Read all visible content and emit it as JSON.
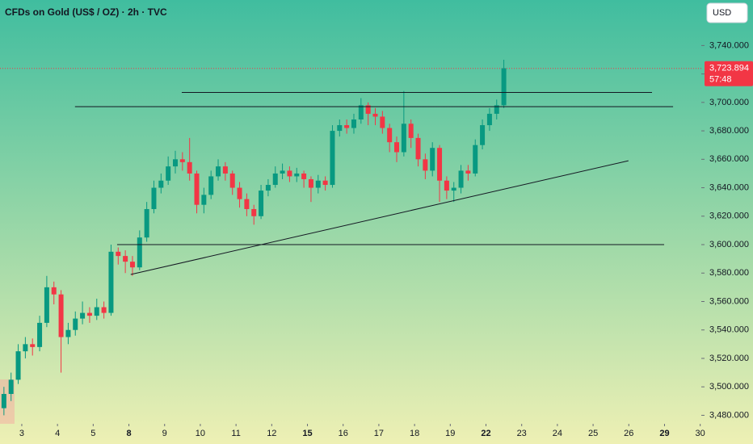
{
  "chart_data": {
    "type": "candlestick",
    "title": "CFDs on Gold (US$ / OZ) · 2h · TVC",
    "currency_button": "USD",
    "up_color": "#089981",
    "down_color": "#f23645",
    "line_color": "#131722",
    "xlim": [
      -0.61,
      19.03
    ],
    "ylim": [
      3474,
      3772
    ],
    "xticks": [
      {
        "value": 0,
        "label": "3"
      },
      {
        "value": 1,
        "label": "4"
      },
      {
        "value": 2,
        "label": "5"
      },
      {
        "value": 3,
        "label": "8"
      },
      {
        "value": 4,
        "label": "9"
      },
      {
        "value": 5,
        "label": "10"
      },
      {
        "value": 6,
        "label": "11"
      },
      {
        "value": 7,
        "label": "12"
      },
      {
        "value": 8,
        "label": "15"
      },
      {
        "value": 9,
        "label": "16"
      },
      {
        "value": 10,
        "label": "17"
      },
      {
        "value": 11,
        "label": "18"
      },
      {
        "value": 12,
        "label": "19"
      },
      {
        "value": 13,
        "label": "22"
      },
      {
        "value": 14,
        "label": "23"
      },
      {
        "value": 15,
        "label": "24"
      },
      {
        "value": 16,
        "label": "25"
      },
      {
        "value": 17,
        "label": "26"
      },
      {
        "value": 18,
        "label": "29"
      },
      {
        "value": 19,
        "label": "30"
      }
    ],
    "yticks": [
      {
        "value": 3480,
        "label": "3,480.000"
      },
      {
        "value": 3500,
        "label": "3,500.000"
      },
      {
        "value": 3520,
        "label": "3,520.000"
      },
      {
        "value": 3540,
        "label": "3,540.000"
      },
      {
        "value": 3560,
        "label": "3,560.000"
      },
      {
        "value": 3580,
        "label": "3,580.000"
      },
      {
        "value": 3600,
        "label": "3,600.000"
      },
      {
        "value": 3620,
        "label": "3,620.000"
      },
      {
        "value": 3640,
        "label": "3,640.000"
      },
      {
        "value": 3660,
        "label": "3,660.000"
      },
      {
        "value": 3680,
        "label": "3,680.000"
      },
      {
        "value": 3700,
        "label": "3,700.000"
      },
      {
        "value": 3720,
        "label": "3,720.000"
      },
      {
        "value": 3740,
        "label": "3,740.000"
      }
    ],
    "x": [
      -0.5,
      -0.3,
      -0.1,
      0.1,
      0.3,
      0.5,
      0.7,
      0.9,
      1.1,
      1.3,
      1.5,
      1.7,
      1.9,
      2.1,
      2.3,
      2.5,
      2.7,
      2.9,
      3.1,
      3.3,
      3.5,
      3.7,
      3.9,
      4.1,
      4.3,
      4.5,
      4.7,
      4.9,
      5.1,
      5.3,
      5.5,
      5.7,
      5.9,
      6.1,
      6.3,
      6.5,
      6.7,
      6.9,
      7.1,
      7.3,
      7.5,
      7.7,
      7.9,
      8.1,
      8.3,
      8.5,
      8.7,
      8.9,
      9.1,
      9.3,
      9.5,
      9.7,
      9.9,
      10.1,
      10.3,
      10.5,
      10.7,
      10.9,
      11.1,
      11.3,
      11.5,
      11.7,
      11.9,
      12.1,
      12.3,
      12.5,
      12.7,
      12.9,
      13.1,
      13.3,
      13.5
    ],
    "open": [
      3485,
      3495,
      3505,
      3525,
      3530,
      3528,
      3545,
      3570,
      3565,
      3535,
      3540,
      3548,
      3552,
      3550,
      3556,
      3552,
      3595,
      3592,
      3588,
      3584,
      3605,
      3625,
      3640,
      3645,
      3655,
      3660,
      3658,
      3650,
      3628,
      3635,
      3648,
      3655,
      3650,
      3640,
      3632,
      3625,
      3620,
      3638,
      3642,
      3650,
      3652,
      3648,
      3650,
      3646,
      3640,
      3645,
      3642,
      3680,
      3684,
      3682,
      3688,
      3698,
      3692,
      3690,
      3682,
      3672,
      3665,
      3685,
      3675,
      3660,
      3652,
      3668,
      3645,
      3638,
      3640,
      3652,
      3650,
      3670,
      3684,
      3692,
      3698
    ],
    "high": [
      3500,
      3510,
      3530,
      3535,
      3534,
      3550,
      3578,
      3574,
      3568,
      3545,
      3553,
      3560,
      3556,
      3562,
      3560,
      3600,
      3598,
      3596,
      3592,
      3610,
      3630,
      3645,
      3650,
      3662,
      3666,
      3665,
      3675,
      3652,
      3640,
      3652,
      3660,
      3658,
      3652,
      3644,
      3636,
      3628,
      3642,
      3646,
      3655,
      3657,
      3655,
      3654,
      3652,
      3648,
      3649,
      3648,
      3684,
      3688,
      3688,
      3692,
      3703,
      3700,
      3696,
      3694,
      3685,
      3676,
      3708,
      3688,
      3678,
      3664,
      3672,
      3670,
      3648,
      3644,
      3656,
      3656,
      3674,
      3688,
      3696,
      3702,
      3730
    ],
    "low": [
      3480,
      3490,
      3502,
      3520,
      3522,
      3525,
      3542,
      3558,
      3510,
      3530,
      3536,
      3544,
      3545,
      3547,
      3548,
      3550,
      3586,
      3580,
      3578,
      3582,
      3602,
      3622,
      3636,
      3642,
      3650,
      3652,
      3645,
      3622,
      3622,
      3632,
      3645,
      3645,
      3635,
      3626,
      3620,
      3614,
      3618,
      3634,
      3640,
      3646,
      3644,
      3644,
      3640,
      3630,
      3636,
      3638,
      3640,
      3676,
      3678,
      3678,
      3685,
      3684,
      3684,
      3678,
      3665,
      3658,
      3662,
      3668,
      3655,
      3646,
      3648,
      3630,
      3632,
      3630,
      3636,
      3645,
      3648,
      3667,
      3680,
      3688,
      3696
    ],
    "close": [
      3495,
      3505,
      3525,
      3530,
      3528,
      3545,
      3570,
      3565,
      3535,
      3540,
      3548,
      3552,
      3550,
      3556,
      3552,
      3595,
      3592,
      3588,
      3584,
      3605,
      3625,
      3640,
      3645,
      3655,
      3660,
      3658,
      3650,
      3628,
      3635,
      3648,
      3655,
      3650,
      3640,
      3632,
      3625,
      3620,
      3638,
      3642,
      3650,
      3652,
      3648,
      3650,
      3646,
      3640,
      3645,
      3642,
      3680,
      3684,
      3682,
      3688,
      3698,
      3692,
      3690,
      3682,
      3672,
      3665,
      3685,
      3675,
      3660,
      3652,
      3668,
      3645,
      3638,
      3640,
      3652,
      3650,
      3670,
      3684,
      3692,
      3698,
      3724
    ],
    "drawings": [
      {
        "x1": 4.48,
        "y1": 3707,
        "x2": 17.65,
        "y2": 3707
      },
      {
        "x1": 1.49,
        "y1": 3697,
        "x2": 18.24,
        "y2": 3697
      },
      {
        "x1": 2.67,
        "y1": 3600,
        "x2": 17.99,
        "y2": 3600
      },
      {
        "x1": 3.05,
        "y1": 3579,
        "x2": 16.99,
        "y2": 3659
      }
    ],
    "last_price": {
      "value": 3723.894,
      "label": "3,723.894",
      "countdown": "57:48"
    }
  }
}
